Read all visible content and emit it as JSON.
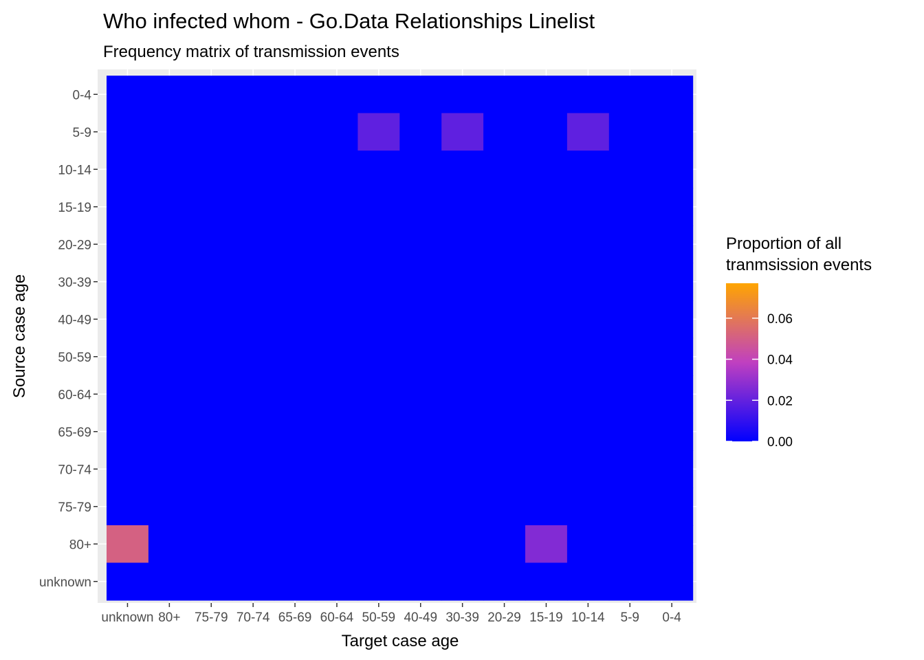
{
  "chart_data": {
    "type": "heatmap",
    "title": "Who infected whom - Go.Data Relationships Linelist",
    "subtitle": "Frequency matrix of transmission events",
    "xlabel": "Target case age",
    "ylabel": "Source case age",
    "x_categories": [
      "unknown",
      "80+",
      "75-79",
      "70-74",
      "65-69",
      "60-64",
      "50-59",
      "40-49",
      "30-39",
      "20-29",
      "15-19",
      "10-14",
      "5-9",
      "0-4"
    ],
    "y_categories": [
      "0-4",
      "5-9",
      "10-14",
      "15-19",
      "20-29",
      "30-39",
      "40-49",
      "50-59",
      "60-64",
      "65-69",
      "70-74",
      "75-79",
      "80+",
      "unknown"
    ],
    "values": [
      [
        0,
        0,
        0,
        0,
        0,
        0,
        0,
        0,
        0,
        0,
        0,
        0,
        0,
        0
      ],
      [
        0,
        0,
        0,
        0,
        0,
        0,
        0.019,
        0,
        0.019,
        0,
        0,
        0.019,
        0,
        0
      ],
      [
        0,
        0,
        0,
        0,
        0,
        0,
        0,
        0,
        0,
        0,
        0,
        0,
        0,
        0
      ],
      [
        0,
        0,
        0,
        0,
        0,
        0,
        0,
        0,
        0,
        0,
        0,
        0,
        0,
        0
      ],
      [
        0,
        0,
        0,
        0,
        0,
        0,
        0,
        0,
        0,
        0,
        0,
        0,
        0,
        0
      ],
      [
        0,
        0,
        0,
        0,
        0,
        0,
        0,
        0,
        0,
        0,
        0,
        0,
        0,
        0
      ],
      [
        0,
        0,
        0,
        0,
        0,
        0,
        0,
        0,
        0,
        0,
        0,
        0,
        0,
        0
      ],
      [
        0,
        0,
        0,
        0,
        0,
        0,
        0,
        0,
        0,
        0,
        0,
        0,
        0,
        0
      ],
      [
        0,
        0,
        0,
        0,
        0,
        0,
        0,
        0,
        0,
        0,
        0,
        0,
        0,
        0
      ],
      [
        0,
        0,
        0,
        0,
        0,
        0,
        0,
        0,
        0,
        0,
        0,
        0,
        0,
        0
      ],
      [
        0,
        0,
        0,
        0,
        0,
        0,
        0,
        0,
        0,
        0,
        0,
        0,
        0,
        0
      ],
      [
        0,
        0,
        0,
        0,
        0,
        0,
        0,
        0,
        0,
        0,
        0,
        0,
        0,
        0
      ],
      [
        0.051,
        0,
        0,
        0,
        0,
        0,
        0,
        0,
        0,
        0,
        0.026,
        0,
        0,
        0
      ],
      [
        0,
        0,
        0,
        0,
        0,
        0,
        0,
        0,
        0,
        0,
        0,
        0,
        0,
        0
      ]
    ],
    "legend": {
      "title_lines": [
        "Proportion of all",
        "tranmsission events"
      ],
      "breaks": [
        0.06,
        0.04,
        0.02,
        0.0
      ],
      "break_labels": [
        "0.06",
        "0.04",
        "0.02",
        "0.00"
      ],
      "range": [
        0,
        0.077
      ],
      "low_color": "#0000ff",
      "mid_color": "#c040c0",
      "high_color": "#ffa500"
    },
    "panel_background": "#ebebeb",
    "grid": true,
    "legend_position": "right"
  }
}
